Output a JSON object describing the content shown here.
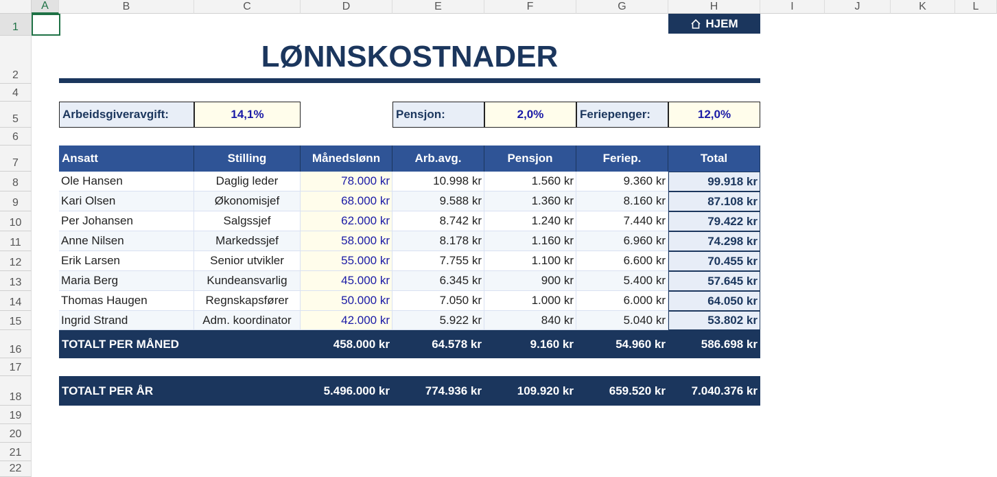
{
  "columns": [
    "A",
    "B",
    "C",
    "D",
    "E",
    "F",
    "G",
    "H",
    "I",
    "J",
    "K",
    "L"
  ],
  "rows": [
    "1",
    "2",
    "4",
    "5",
    "6",
    "7",
    "8",
    "9",
    "10",
    "11",
    "12",
    "13",
    "14",
    "15",
    "16",
    "17",
    "18",
    "19",
    "20",
    "21",
    "22"
  ],
  "home_button": "HJEM",
  "title": "LØNNSKOSTNADER",
  "parameters": [
    {
      "label": "Arbeidsgiveravgift:",
      "value": "14,1%"
    },
    {
      "label": "Pensjon:",
      "value": "2,0%"
    },
    {
      "label": "Feriepenger:",
      "value": "12,0%"
    }
  ],
  "table": {
    "headers": [
      "Ansatt",
      "Stilling",
      "Månedslønn",
      "Arb.avg.",
      "Pensjon",
      "Feriep.",
      "Total"
    ],
    "rows": [
      [
        "Ole Hansen",
        "Daglig leder",
        "78.000 kr",
        "10.998 kr",
        "1.560 kr",
        "9.360 kr",
        "99.918 kr"
      ],
      [
        "Kari Olsen",
        "Økonomisjef",
        "68.000 kr",
        "9.588 kr",
        "1.360 kr",
        "8.160 kr",
        "87.108 kr"
      ],
      [
        "Per Johansen",
        "Salgssjef",
        "62.000 kr",
        "8.742 kr",
        "1.240 kr",
        "7.440 kr",
        "79.422 kr"
      ],
      [
        "Anne Nilsen",
        "Markedssjef",
        "58.000 kr",
        "8.178 kr",
        "1.160 kr",
        "6.960 kr",
        "74.298 kr"
      ],
      [
        "Erik Larsen",
        "Senior utvikler",
        "55.000 kr",
        "7.755 kr",
        "1.100 kr",
        "6.600 kr",
        "70.455 kr"
      ],
      [
        "Maria Berg",
        "Kundeansvarlig",
        "45.000 kr",
        "6.345 kr",
        "900 kr",
        "5.400 kr",
        "57.645 kr"
      ],
      [
        "Thomas Haugen",
        "Regnskapsfører",
        "50.000 kr",
        "7.050 kr",
        "1.000 kr",
        "6.000 kr",
        "64.050 kr"
      ],
      [
        "Ingrid Strand",
        "Adm. koordinator",
        "42.000 kr",
        "5.922 kr",
        "840 kr",
        "5.040 kr",
        "53.802 kr"
      ]
    ]
  },
  "totals": [
    {
      "label": "TOTALT PER MÅNED",
      "values": [
        "458.000 kr",
        "64.578 kr",
        "9.160 kr",
        "54.960 kr",
        "586.698 kr"
      ]
    },
    {
      "label": "TOTALT PER ÅR",
      "values": [
        "5.496.000 kr",
        "774.936 kr",
        "109.920 kr",
        "659.520 kr",
        "7.040.376 kr"
      ]
    }
  ]
}
